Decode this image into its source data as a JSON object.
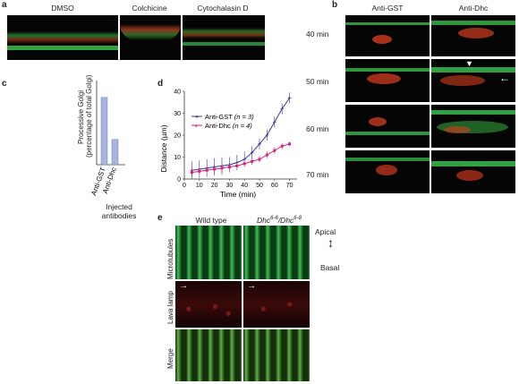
{
  "panel_labels": {
    "a": "a",
    "b": "b",
    "c": "c",
    "d": "d",
    "e": "e"
  },
  "panel_a": {
    "headers": [
      "DMSO",
      "Colchicine",
      "Cytochalasin D"
    ]
  },
  "panel_b": {
    "headers": [
      "Anti-GST",
      "Anti-Dhc"
    ],
    "times": [
      "40 min",
      "50 min",
      "60 min",
      "70 min"
    ]
  },
  "panel_e": {
    "col_wild": "Wild type",
    "col_mutant_base": "Dhc",
    "col_mutant_sup1": "6-6",
    "col_mutant_mid": "/Dhc",
    "col_mutant_sup2": "6-8",
    "rows": [
      "Microtubules",
      "Lava lamp",
      "Merge"
    ],
    "apical": "Apical",
    "basal": "Basal"
  },
  "colors": {
    "green": "#2fb84a",
    "red": "#d83a1f",
    "bar": "#a9b4de",
    "gst_line": "#3a3a9a",
    "dhc_line": "#d4247a"
  },
  "chart_data": [
    {
      "type": "bar",
      "panel": "c",
      "categories": [
        "Anti-GST",
        "Anti-Dhc"
      ],
      "values": [
        24,
        9
      ],
      "ylabel_line1": "Processive Golgi",
      "ylabel_line2": "(percentage of total Golgi)",
      "xlabel_line1": "Injected",
      "xlabel_line2": "antibodies",
      "ylim": [
        0,
        30
      ]
    },
    {
      "type": "line",
      "panel": "d",
      "x": [
        5,
        10,
        15,
        20,
        25,
        30,
        35,
        40,
        45,
        50,
        55,
        60,
        65,
        70
      ],
      "series": [
        {
          "name": "Anti-GST",
          "n_label": "(n = 3)",
          "values": [
            4,
            4.5,
            5,
            5.5,
            6,
            6.5,
            7.5,
            9,
            12,
            16,
            20,
            26,
            32,
            37
          ],
          "err": [
            4,
            4,
            4,
            4,
            4,
            3.5,
            3.5,
            3.5,
            3,
            2.5,
            2.5,
            2.5,
            2.5,
            2.5
          ]
        },
        {
          "name": "Anti-Dhc",
          "n_label": "(n = 4)",
          "values": [
            3,
            3.5,
            4,
            4.5,
            5,
            5.5,
            6,
            7,
            8,
            9,
            11,
            13,
            15,
            16
          ],
          "err": [
            2,
            2,
            2,
            2,
            2,
            1.5,
            1.5,
            1.5,
            1.5,
            1.5,
            1.5,
            1.5,
            1.5,
            1
          ]
        }
      ],
      "xlabel": "Time (min)",
      "ylabel": "Distance (µm)",
      "xticks": [
        0,
        10,
        20,
        30,
        40,
        50,
        60,
        70
      ],
      "yticks": [
        0,
        10,
        20,
        30,
        40
      ],
      "xlim": [
        0,
        75
      ],
      "ylim": [
        0,
        40
      ]
    }
  ]
}
